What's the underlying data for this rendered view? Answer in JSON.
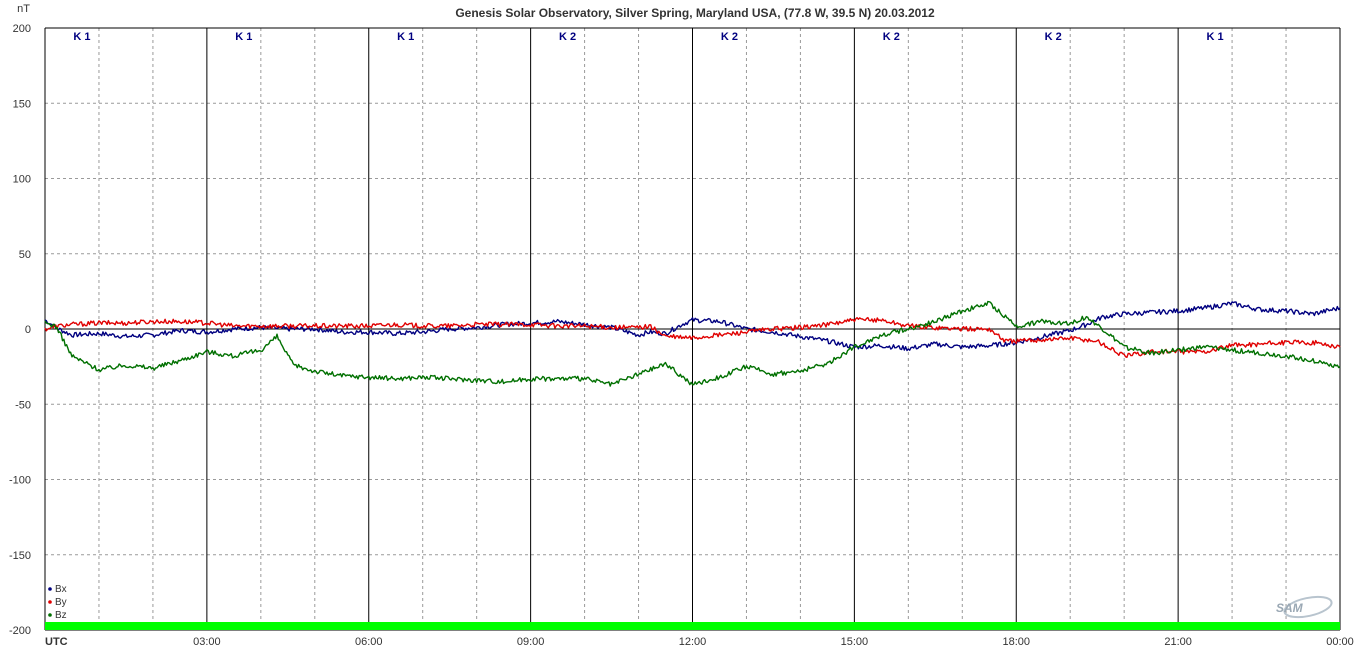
{
  "chart_data": {
    "type": "line",
    "title": "Genesis Solar Observatory, Silver Spring, Maryland USA, (77.8 W, 39.5 N)  20.03.2012",
    "ylabel": "nT",
    "xlabel": "UTC",
    "ylim": [
      -200,
      200
    ],
    "yticks": [
      "200",
      "150",
      "100",
      "50",
      "0",
      "-50",
      "-100",
      "-150",
      "-200"
    ],
    "xlim_hours": [
      0,
      24
    ],
    "xticks": [
      {
        "h": 3,
        "label": "03:00"
      },
      {
        "h": 6,
        "label": "06:00"
      },
      {
        "h": 9,
        "label": "09:00"
      },
      {
        "h": 12,
        "label": "12:00"
      },
      {
        "h": 15,
        "label": "15:00"
      },
      {
        "h": 18,
        "label": "18:00"
      },
      {
        "h": 21,
        "label": "21:00"
      },
      {
        "h": 24,
        "label": "00:00"
      }
    ],
    "k_index": [
      "K 1",
      "K 1",
      "K 1",
      "K 2",
      "K 2",
      "K 2",
      "K 2",
      "K 1"
    ],
    "grid": true,
    "legend_position": "bottom-left",
    "series": [
      {
        "name": "Bx",
        "color": "#000080",
        "x": [
          0,
          0.25,
          0.5,
          1,
          1.5,
          2,
          2.5,
          3,
          3.5,
          4,
          4.5,
          5,
          5.5,
          6,
          6.5,
          7,
          7.5,
          8,
          8.5,
          9,
          9.5,
          10,
          10.5,
          11,
          11.2,
          11.5,
          11.8,
          12,
          12.5,
          13,
          13.5,
          14,
          14.5,
          15,
          15.5,
          16,
          16.5,
          17,
          17.5,
          18,
          18.5,
          19,
          19.3,
          19.6,
          20,
          20.5,
          21,
          21.5,
          22,
          22.5,
          23,
          23.5,
          24
        ],
        "values": [
          6,
          0,
          -4,
          -3,
          -5,
          -4,
          -1,
          -2,
          0,
          1,
          0,
          0,
          -2,
          -2,
          -3,
          -2,
          0,
          1,
          3,
          4,
          5,
          3,
          1,
          -4,
          -2,
          -3,
          3,
          6,
          5,
          0,
          -2,
          -5,
          -8,
          -12,
          -11,
          -13,
          -10,
          -12,
          -11,
          -9,
          -5,
          -1,
          3,
          8,
          10,
          11,
          12,
          14,
          17,
          13,
          12,
          10,
          14
        ]
      },
      {
        "name": "By",
        "color": "#e00000",
        "x": [
          0,
          0.25,
          0.5,
          1,
          1.5,
          2,
          2.5,
          3,
          3.5,
          4,
          4.5,
          5,
          5.5,
          6,
          6.5,
          7,
          7.5,
          8,
          8.5,
          9,
          9.5,
          10,
          10.5,
          11,
          11.2,
          11.5,
          12,
          12.5,
          13,
          13.5,
          14,
          14.5,
          15,
          15.5,
          16,
          16.5,
          17,
          17.5,
          17.8,
          18,
          18.5,
          19,
          19.5,
          20,
          20.5,
          21,
          21.5,
          22,
          22.5,
          23,
          23.5,
          24
        ],
        "values": [
          0,
          2,
          3,
          4,
          4,
          5,
          5,
          4,
          2,
          2,
          2,
          2,
          2,
          2,
          3,
          2,
          2,
          3,
          3,
          3,
          2,
          2,
          1,
          1,
          2,
          -5,
          -6,
          -4,
          -2,
          0,
          1,
          3,
          6,
          6,
          2,
          1,
          0,
          0,
          -8,
          -8,
          -7,
          -6,
          -8,
          -18,
          -15,
          -15,
          -15,
          -11,
          -10,
          -9,
          -9,
          -12
        ]
      },
      {
        "name": "Bz",
        "color": "#007000",
        "x": [
          0,
          0.2,
          0.5,
          1,
          1.5,
          2,
          2.5,
          3,
          3.5,
          4,
          4.3,
          4.6,
          5,
          5.5,
          6,
          6.5,
          7,
          7.5,
          8,
          8.5,
          9,
          9.5,
          10,
          10.5,
          11,
          11.5,
          12,
          12.5,
          13,
          13.5,
          14,
          14.5,
          15,
          15.5,
          16,
          16.5,
          17,
          17.5,
          18,
          18.5,
          19,
          19.3,
          19.6,
          20,
          20.5,
          21,
          21.5,
          22,
          22.5,
          23,
          23.5,
          24
        ],
        "values": [
          4,
          2,
          -18,
          -27,
          -24,
          -26,
          -21,
          -15,
          -18,
          -14,
          -5,
          -24,
          -28,
          -31,
          -32,
          -33,
          -32,
          -33,
          -34,
          -35,
          -33,
          -33,
          -33,
          -37,
          -30,
          -23,
          -37,
          -32,
          -25,
          -30,
          -28,
          -23,
          -12,
          -4,
          0,
          5,
          12,
          17,
          2,
          5,
          4,
          8,
          0,
          -12,
          -16,
          -14,
          -12,
          -14,
          -16,
          -18,
          -21,
          -25
        ]
      }
    ],
    "logo_text": "SAM"
  }
}
